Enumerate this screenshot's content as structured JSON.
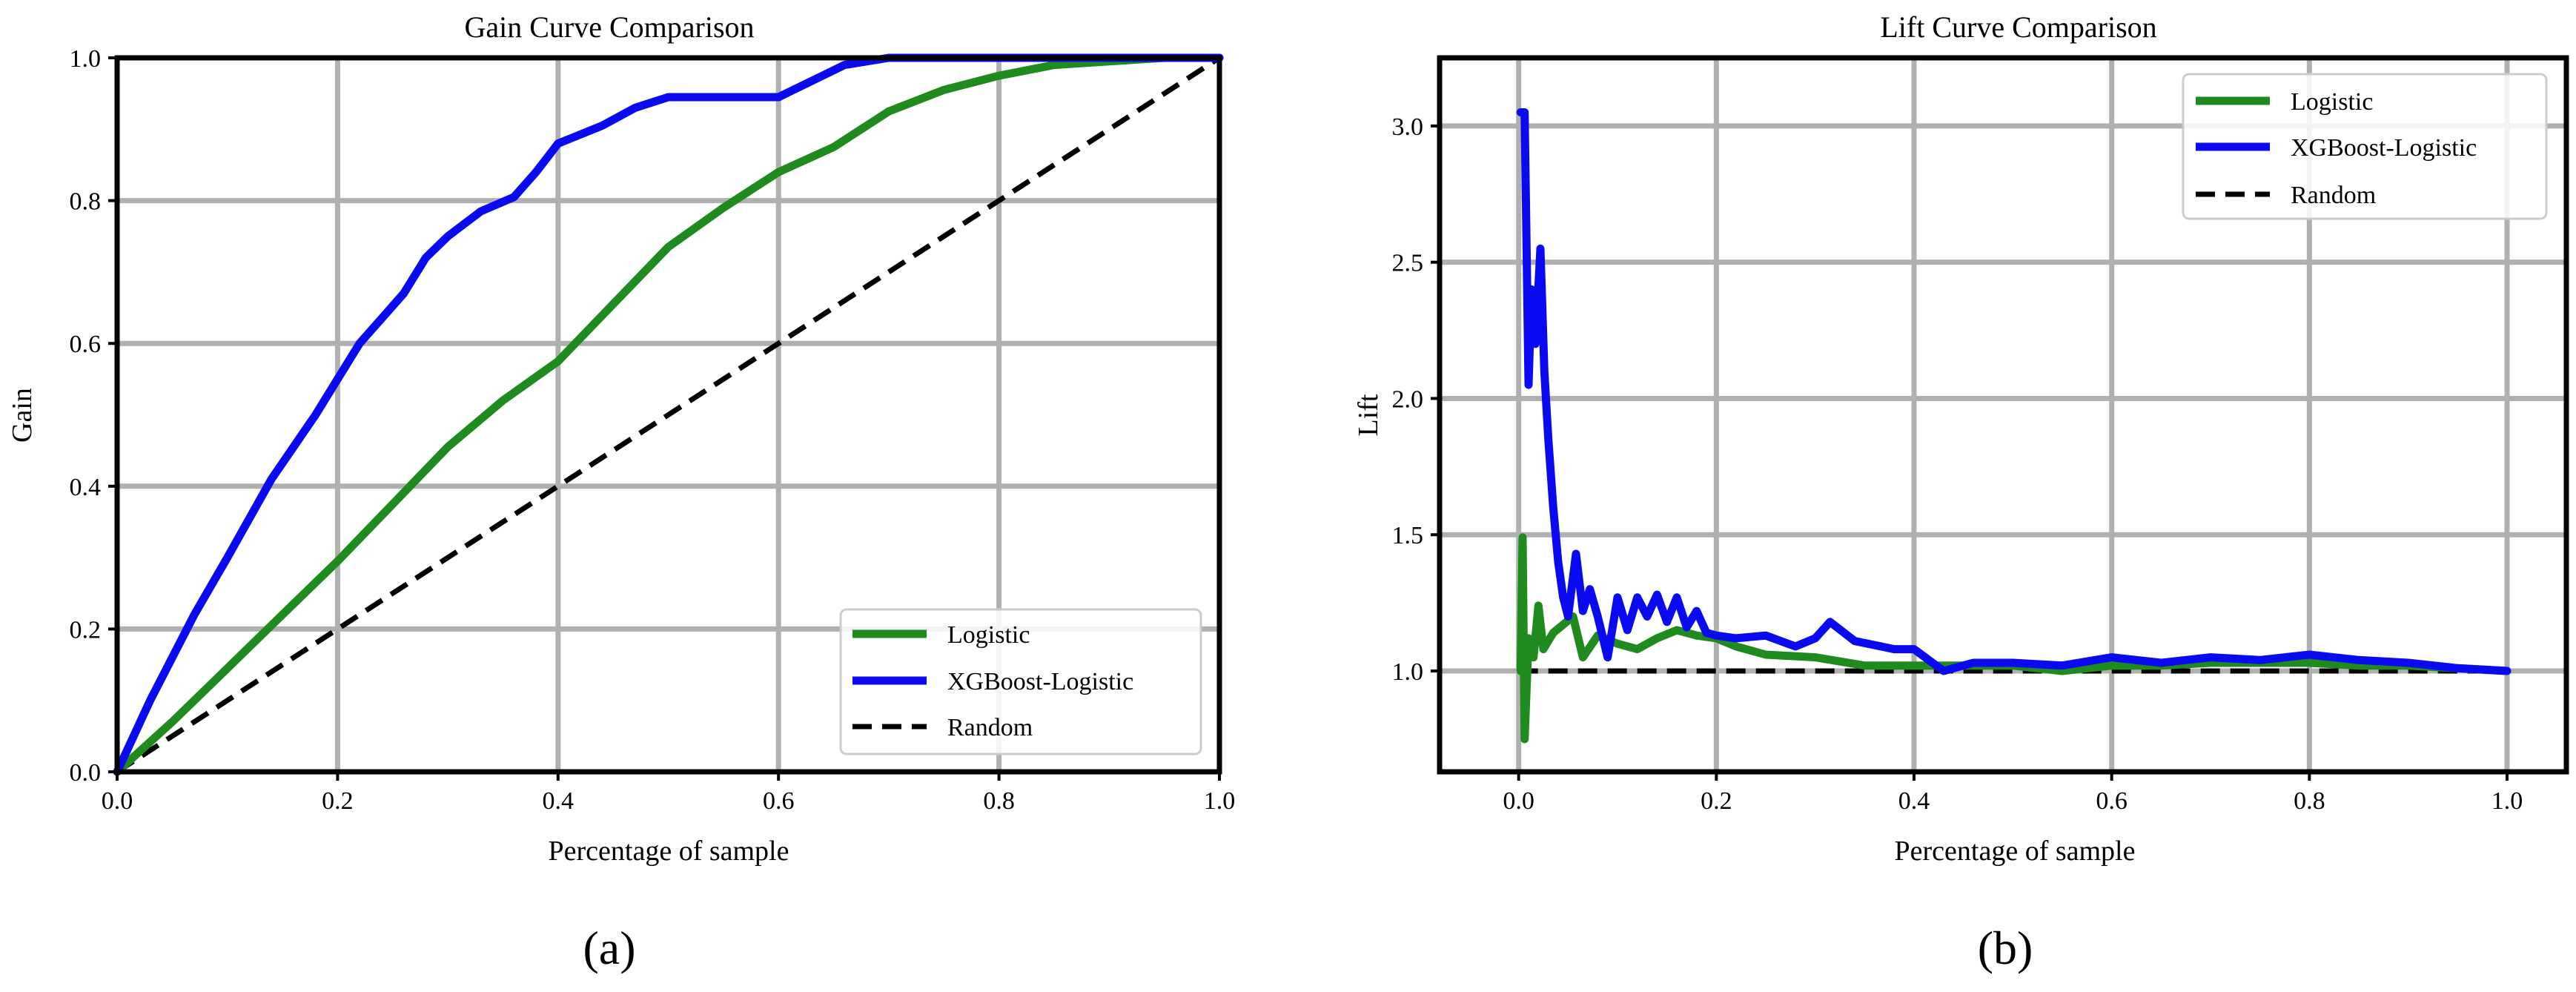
{
  "panel_labels": [
    "(a)",
    "(b)"
  ],
  "colors": {
    "logistic": "#1f8b1f",
    "xgboost": "#0a0af0",
    "random": "#000000"
  },
  "chart_data": [
    {
      "type": "line",
      "title": "Gain Curve Comparison",
      "xlabel": "Percentage of sample",
      "ylabel": "Gain",
      "xlim": [
        0,
        1
      ],
      "ylim": [
        0,
        1
      ],
      "xticks": [
        "0.0",
        "0.2",
        "0.4",
        "0.6",
        "0.8",
        "1.0"
      ],
      "yticks": [
        "0.0",
        "0.2",
        "0.4",
        "0.6",
        "0.8",
        "1.0"
      ],
      "grid": true,
      "legend": "lower-right",
      "series": [
        {
          "name": "Logistic",
          "color": "#1f8b1f",
          "dash": false,
          "x": [
            0,
            0.05,
            0.1,
            0.15,
            0.2,
            0.25,
            0.3,
            0.35,
            0.4,
            0.45,
            0.5,
            0.55,
            0.6,
            0.65,
            0.7,
            0.75,
            0.8,
            0.85,
            0.9,
            0.95,
            1.0
          ],
          "y": [
            0,
            0.07,
            0.145,
            0.22,
            0.295,
            0.375,
            0.455,
            0.52,
            0.575,
            0.655,
            0.735,
            0.79,
            0.84,
            0.875,
            0.925,
            0.955,
            0.975,
            0.99,
            0.995,
            1.0,
            1.0
          ]
        },
        {
          "name": "XGBoost-Logistic",
          "color": "#0a0af0",
          "dash": false,
          "x": [
            0,
            0.03,
            0.07,
            0.1,
            0.14,
            0.18,
            0.22,
            0.26,
            0.28,
            0.3,
            0.33,
            0.36,
            0.38,
            0.4,
            0.44,
            0.47,
            0.5,
            0.55,
            0.6,
            0.64,
            0.66,
            0.7,
            0.8,
            0.9,
            1.0
          ],
          "y": [
            0,
            0.1,
            0.22,
            0.3,
            0.41,
            0.5,
            0.6,
            0.67,
            0.72,
            0.75,
            0.785,
            0.805,
            0.84,
            0.88,
            0.905,
            0.93,
            0.945,
            0.945,
            0.945,
            0.975,
            0.99,
            1.0,
            1.0,
            1.0,
            1.0
          ]
        },
        {
          "name": "Random",
          "color": "#000000",
          "dash": true,
          "x": [
            0,
            1
          ],
          "y": [
            0,
            1
          ]
        }
      ]
    },
    {
      "type": "line",
      "title": "Lift Curve Comparison",
      "xlabel": "Percentage of sample",
      "ylabel": "Lift",
      "xlim": [
        -0.08,
        1.06
      ],
      "ylim": [
        0.63,
        3.25
      ],
      "xticks": [
        "0.0",
        "0.2",
        "0.4",
        "0.6",
        "0.8",
        "1.0"
      ],
      "yticks": [
        "1.0",
        "1.5",
        "2.0",
        "2.5",
        "3.0"
      ],
      "grid": true,
      "legend": "upper-right",
      "series": [
        {
          "name": "Logistic",
          "color": "#1f8b1f",
          "dash": false,
          "x": [
            0.002,
            0.004,
            0.006,
            0.01,
            0.015,
            0.02,
            0.025,
            0.035,
            0.045,
            0.055,
            0.065,
            0.08,
            0.1,
            0.12,
            0.14,
            0.16,
            0.18,
            0.2,
            0.22,
            0.25,
            0.3,
            0.35,
            0.4,
            0.45,
            0.5,
            0.55,
            0.6,
            0.65,
            0.7,
            0.75,
            0.8,
            0.85,
            0.9,
            0.95,
            1.0
          ],
          "y": [
            1.0,
            1.49,
            0.75,
            1.12,
            1.05,
            1.24,
            1.08,
            1.14,
            1.17,
            1.2,
            1.05,
            1.13,
            1.1,
            1.08,
            1.12,
            1.15,
            1.13,
            1.12,
            1.09,
            1.06,
            1.05,
            1.02,
            1.02,
            1.02,
            1.02,
            1.0,
            1.02,
            1.02,
            1.03,
            1.03,
            1.03,
            1.02,
            1.02,
            1.01,
            1.0
          ]
        },
        {
          "name": "XGBoost-Logistic",
          "color": "#0a0af0",
          "dash": false,
          "x": [
            0.002,
            0.006,
            0.01,
            0.013,
            0.017,
            0.022,
            0.026,
            0.03,
            0.035,
            0.04,
            0.045,
            0.05,
            0.058,
            0.065,
            0.072,
            0.08,
            0.09,
            0.1,
            0.11,
            0.12,
            0.13,
            0.14,
            0.15,
            0.16,
            0.17,
            0.18,
            0.19,
            0.2,
            0.22,
            0.25,
            0.28,
            0.3,
            0.315,
            0.34,
            0.38,
            0.4,
            0.43,
            0.46,
            0.5,
            0.55,
            0.6,
            0.65,
            0.7,
            0.75,
            0.8,
            0.85,
            0.9,
            0.95,
            1.0
          ],
          "y": [
            3.05,
            3.05,
            2.05,
            2.4,
            2.2,
            2.55,
            2.1,
            1.85,
            1.6,
            1.4,
            1.27,
            1.2,
            1.43,
            1.22,
            1.3,
            1.2,
            1.05,
            1.27,
            1.15,
            1.27,
            1.2,
            1.28,
            1.18,
            1.27,
            1.16,
            1.22,
            1.14,
            1.13,
            1.12,
            1.13,
            1.09,
            1.12,
            1.18,
            1.11,
            1.08,
            1.08,
            1.0,
            1.03,
            1.03,
            1.02,
            1.05,
            1.03,
            1.05,
            1.04,
            1.06,
            1.04,
            1.03,
            1.01,
            1.0
          ]
        },
        {
          "name": "Random",
          "color": "#000000",
          "dash": true,
          "x": [
            0,
            1
          ],
          "y": [
            1,
            1
          ]
        }
      ]
    }
  ]
}
